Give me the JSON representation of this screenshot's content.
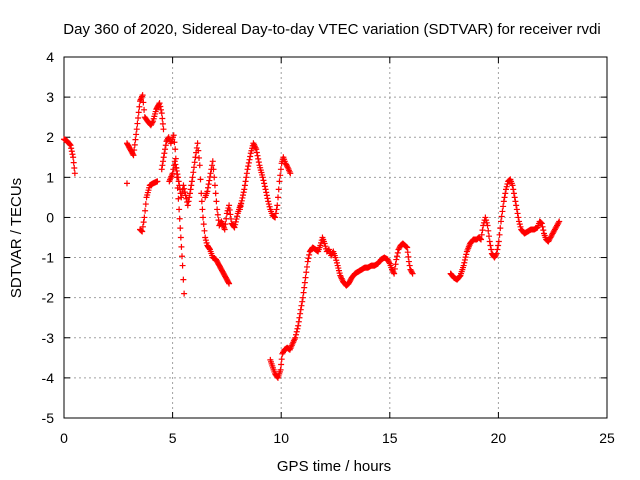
{
  "chart_data": {
    "type": "scatter",
    "title": "Day 360 of 2020, Sidereal Day-to-day VTEC variation (SDTVAR) for receiver rvdi",
    "xlabel": "GPS time / hours",
    "ylabel": "SDTVAR / TECUs",
    "xlim": [
      0,
      25
    ],
    "ylim": [
      -5,
      4
    ],
    "x_ticks": [
      "0",
      "5",
      "10",
      "15",
      "20",
      "25"
    ],
    "y_ticks": [
      "-5",
      "-4",
      "-3",
      "-2",
      "-1",
      "0",
      "1",
      "2",
      "3",
      "4"
    ],
    "grid": true,
    "marker": "+",
    "marker_color": "#ff0000",
    "series": [
      {
        "name": "SDTVAR",
        "segments": [
          [
            [
              0.0,
              1.95
            ],
            [
              0.15,
              1.9
            ],
            [
              0.3,
              1.8
            ],
            [
              0.42,
              1.5
            ],
            [
              0.5,
              1.1
            ]
          ],
          [
            [
              2.9,
              0.85
            ]
          ],
          [
            [
              2.9,
              1.85
            ],
            [
              3.05,
              1.7
            ],
            [
              3.2,
              1.55
            ],
            [
              3.35,
              2.2
            ],
            [
              3.5,
              2.9
            ],
            [
              3.62,
              3.05
            ],
            [
              3.72,
              2.5
            ],
            [
              3.85,
              2.4
            ],
            [
              4.0,
              2.3
            ],
            [
              4.1,
              2.4
            ],
            [
              4.25,
              2.7
            ],
            [
              4.4,
              2.85
            ],
            [
              4.5,
              2.6
            ],
            [
              4.58,
              2.2
            ]
          ],
          [
            [
              3.5,
              -0.3
            ],
            [
              3.6,
              -0.35
            ],
            [
              3.7,
              0.0
            ],
            [
              3.8,
              0.5
            ],
            [
              3.95,
              0.8
            ],
            [
              4.1,
              0.85
            ],
            [
              4.3,
              0.9
            ]
          ],
          [
            [
              4.5,
              1.2
            ],
            [
              4.62,
              1.6
            ],
            [
              4.72,
              1.9
            ],
            [
              4.82,
              2.0
            ],
            [
              4.92,
              1.85
            ],
            [
              5.05,
              2.05
            ],
            [
              5.12,
              1.7
            ],
            [
              5.2,
              1.0
            ],
            [
              5.3,
              0.2
            ],
            [
              5.38,
              -0.5
            ],
            [
              5.46,
              -1.2
            ],
            [
              5.53,
              -1.9
            ]
          ],
          [
            [
              4.85,
              0.9
            ],
            [
              5.0,
              1.1
            ],
            [
              5.1,
              1.4
            ],
            [
              5.25,
              1.0
            ],
            [
              5.4,
              0.5
            ],
            [
              5.5,
              0.8
            ],
            [
              5.6,
              0.55
            ],
            [
              5.7,
              0.3
            ],
            [
              5.8,
              0.6
            ],
            [
              5.92,
              1.0
            ],
            [
              6.05,
              1.5
            ],
            [
              6.15,
              1.85
            ],
            [
              6.25,
              1.3
            ],
            [
              6.32,
              0.6
            ],
            [
              6.4,
              0.0
            ],
            [
              6.5,
              -0.5
            ],
            [
              6.6,
              -0.7
            ],
            [
              6.72,
              -0.8
            ],
            [
              6.85,
              -1.0
            ],
            [
              7.0,
              -1.05
            ],
            [
              7.15,
              -1.2
            ],
            [
              7.3,
              -1.35
            ],
            [
              7.45,
              -1.5
            ],
            [
              7.6,
              -1.65
            ]
          ],
          [
            [
              6.5,
              0.5
            ],
            [
              6.6,
              0.65
            ],
            [
              6.75,
              1.1
            ],
            [
              6.85,
              1.4
            ],
            [
              6.95,
              0.8
            ],
            [
              7.05,
              0.2
            ],
            [
              7.15,
              -0.2
            ],
            [
              7.25,
              -0.1
            ],
            [
              7.4,
              -0.3
            ],
            [
              7.5,
              0.1
            ],
            [
              7.6,
              0.3
            ],
            [
              7.72,
              -0.15
            ],
            [
              7.85,
              -0.25
            ],
            [
              8.0,
              0.1
            ],
            [
              8.15,
              0.35
            ]
          ],
          [
            [
              8.1,
              0.2
            ],
            [
              8.3,
              0.7
            ],
            [
              8.45,
              1.2
            ],
            [
              8.6,
              1.6
            ],
            [
              8.72,
              1.85
            ],
            [
              8.85,
              1.7
            ],
            [
              9.0,
              1.3
            ],
            [
              9.15,
              1.0
            ],
            [
              9.28,
              0.7
            ],
            [
              9.4,
              0.4
            ],
            [
              9.5,
              0.2
            ],
            [
              9.6,
              0.05
            ],
            [
              9.72,
              0.0
            ],
            [
              9.82,
              0.3
            ],
            [
              9.92,
              0.9
            ],
            [
              10.02,
              1.35
            ],
            [
              10.1,
              1.5
            ],
            [
              10.2,
              1.35
            ],
            [
              10.3,
              1.25
            ],
            [
              10.42,
              1.1
            ]
          ],
          [
            [
              9.5,
              -3.55
            ],
            [
              9.62,
              -3.75
            ],
            [
              9.72,
              -3.9
            ],
            [
              9.85,
              -4.0
            ],
            [
              9.97,
              -3.8
            ],
            [
              10.05,
              -3.4
            ],
            [
              10.15,
              -3.3
            ],
            [
              10.28,
              -3.25
            ],
            [
              10.4,
              -3.3
            ],
            [
              10.52,
              -3.15
            ],
            [
              10.65,
              -3.0
            ],
            [
              10.78,
              -2.7
            ],
            [
              10.9,
              -2.3
            ],
            [
              11.0,
              -2.0
            ],
            [
              11.12,
              -1.5
            ],
            [
              11.22,
              -1.1
            ],
            [
              11.32,
              -0.85
            ],
            [
              11.45,
              -0.75
            ],
            [
              11.58,
              -0.8
            ],
            [
              11.7,
              -0.85
            ],
            [
              11.8,
              -0.7
            ],
            [
              11.9,
              -0.5
            ],
            [
              12.0,
              -0.65
            ],
            [
              12.1,
              -0.85
            ],
            [
              12.2,
              -0.8
            ],
            [
              12.3,
              -0.95
            ],
            [
              12.4,
              -0.85
            ],
            [
              12.5,
              -1.0
            ],
            [
              12.6,
              -1.2
            ],
            [
              12.72,
              -1.45
            ],
            [
              12.85,
              -1.6
            ],
            [
              13.0,
              -1.7
            ],
            [
              13.1,
              -1.65
            ],
            [
              13.25,
              -1.5
            ],
            [
              13.4,
              -1.4
            ],
            [
              13.55,
              -1.35
            ],
            [
              13.7,
              -1.3
            ],
            [
              13.85,
              -1.25
            ],
            [
              14.0,
              -1.25
            ],
            [
              14.15,
              -1.2
            ],
            [
              14.3,
              -1.2
            ],
            [
              14.45,
              -1.15
            ],
            [
              14.6,
              -1.05
            ],
            [
              14.75,
              -1.0
            ],
            [
              14.9,
              -1.05
            ],
            [
              15.0,
              -1.15
            ],
            [
              15.1,
              -1.3
            ],
            [
              15.2,
              -1.4
            ],
            [
              15.3,
              -1.05
            ],
            [
              15.4,
              -0.8
            ],
            [
              15.5,
              -0.7
            ],
            [
              15.6,
              -0.65
            ],
            [
              15.7,
              -0.7
            ],
            [
              15.8,
              -0.75
            ],
            [
              15.88,
              -1.1
            ],
            [
              15.95,
              -1.3
            ],
            [
              16.05,
              -1.4
            ]
          ],
          [
            [
              17.8,
              -1.4
            ],
            [
              17.95,
              -1.5
            ],
            [
              18.1,
              -1.55
            ],
            [
              18.25,
              -1.45
            ],
            [
              18.4,
              -1.2
            ],
            [
              18.55,
              -0.85
            ],
            [
              18.7,
              -0.65
            ],
            [
              18.85,
              -0.55
            ],
            [
              19.0,
              -0.55
            ],
            [
              19.1,
              -0.5
            ],
            [
              19.2,
              -0.55
            ],
            [
              19.3,
              -0.2
            ],
            [
              19.4,
              0.0
            ],
            [
              19.5,
              -0.2
            ],
            [
              19.6,
              -0.6
            ],
            [
              19.7,
              -0.9
            ],
            [
              19.82,
              -1.0
            ],
            [
              19.92,
              -0.9
            ],
            [
              20.02,
              -0.6
            ],
            [
              20.12,
              -0.1
            ],
            [
              20.25,
              0.4
            ],
            [
              20.35,
              0.7
            ],
            [
              20.45,
              0.9
            ],
            [
              20.55,
              0.95
            ],
            [
              20.65,
              0.8
            ],
            [
              20.75,
              0.5
            ],
            [
              20.85,
              0.2
            ],
            [
              20.95,
              -0.1
            ],
            [
              21.05,
              -0.3
            ],
            [
              21.2,
              -0.4
            ],
            [
              21.35,
              -0.35
            ],
            [
              21.5,
              -0.3
            ],
            [
              21.65,
              -0.3
            ],
            [
              21.8,
              -0.25
            ],
            [
              21.9,
              -0.1
            ],
            [
              22.0,
              -0.15
            ],
            [
              22.1,
              -0.4
            ],
            [
              22.2,
              -0.55
            ],
            [
              22.3,
              -0.6
            ],
            [
              22.4,
              -0.5
            ],
            [
              22.5,
              -0.4
            ],
            [
              22.6,
              -0.3
            ],
            [
              22.7,
              -0.2
            ],
            [
              22.8,
              -0.1
            ]
          ]
        ]
      }
    ]
  }
}
